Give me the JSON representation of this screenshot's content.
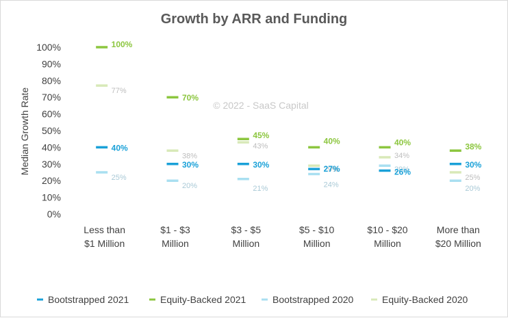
{
  "chart_data": {
    "type": "scatter",
    "title": "Growth by ARR and Funding",
    "ylabel": "Median Growth Rate",
    "xlabel": "",
    "ylim": [
      0,
      100
    ],
    "yticks": [
      "0%",
      "10%",
      "20%",
      "30%",
      "40%",
      "50%",
      "60%",
      "70%",
      "80%",
      "90%",
      "100%"
    ],
    "categories": [
      [
        "Less than",
        "$1 Million"
      ],
      [
        "$1 - $3",
        "Million"
      ],
      [
        "$3 - $5",
        "Million"
      ],
      [
        "$5 - $10",
        "Million"
      ],
      [
        "$10 - $20",
        "Million"
      ],
      [
        "More than",
        "$20 Million"
      ]
    ],
    "series": [
      {
        "name": "Bootstrapped 2021",
        "color": "#1aa1d8",
        "values": [
          40,
          30,
          30,
          27,
          26,
          30
        ],
        "labels": [
          "40%",
          "30%",
          "30%",
          "27%",
          "26%",
          "30%"
        ]
      },
      {
        "name": "Equity-Backed 2021",
        "color": "#8cc63f",
        "values": [
          100,
          70,
          45,
          40,
          40,
          38
        ],
        "labels": [
          "100%",
          "70%",
          "45%",
          "40%",
          "40%",
          "38%"
        ]
      },
      {
        "name": "Bootstrapped 2020",
        "color": "#a9dff1",
        "values": [
          25,
          20,
          21,
          24,
          29,
          20
        ],
        "labels": [
          "25%",
          "20%",
          "21%",
          "24%",
          "29%",
          "20%"
        ]
      },
      {
        "name": "Equity-Backed 2020",
        "color": "#d8e9b8",
        "values": [
          77,
          38,
          43,
          29,
          34,
          25
        ],
        "labels": [
          "77%",
          "38%",
          "43%",
          "29%",
          "34%",
          "25%"
        ]
      }
    ],
    "watermark": "© 2022 - SaaS Capital",
    "legend_position": "bottom",
    "grid": false
  }
}
